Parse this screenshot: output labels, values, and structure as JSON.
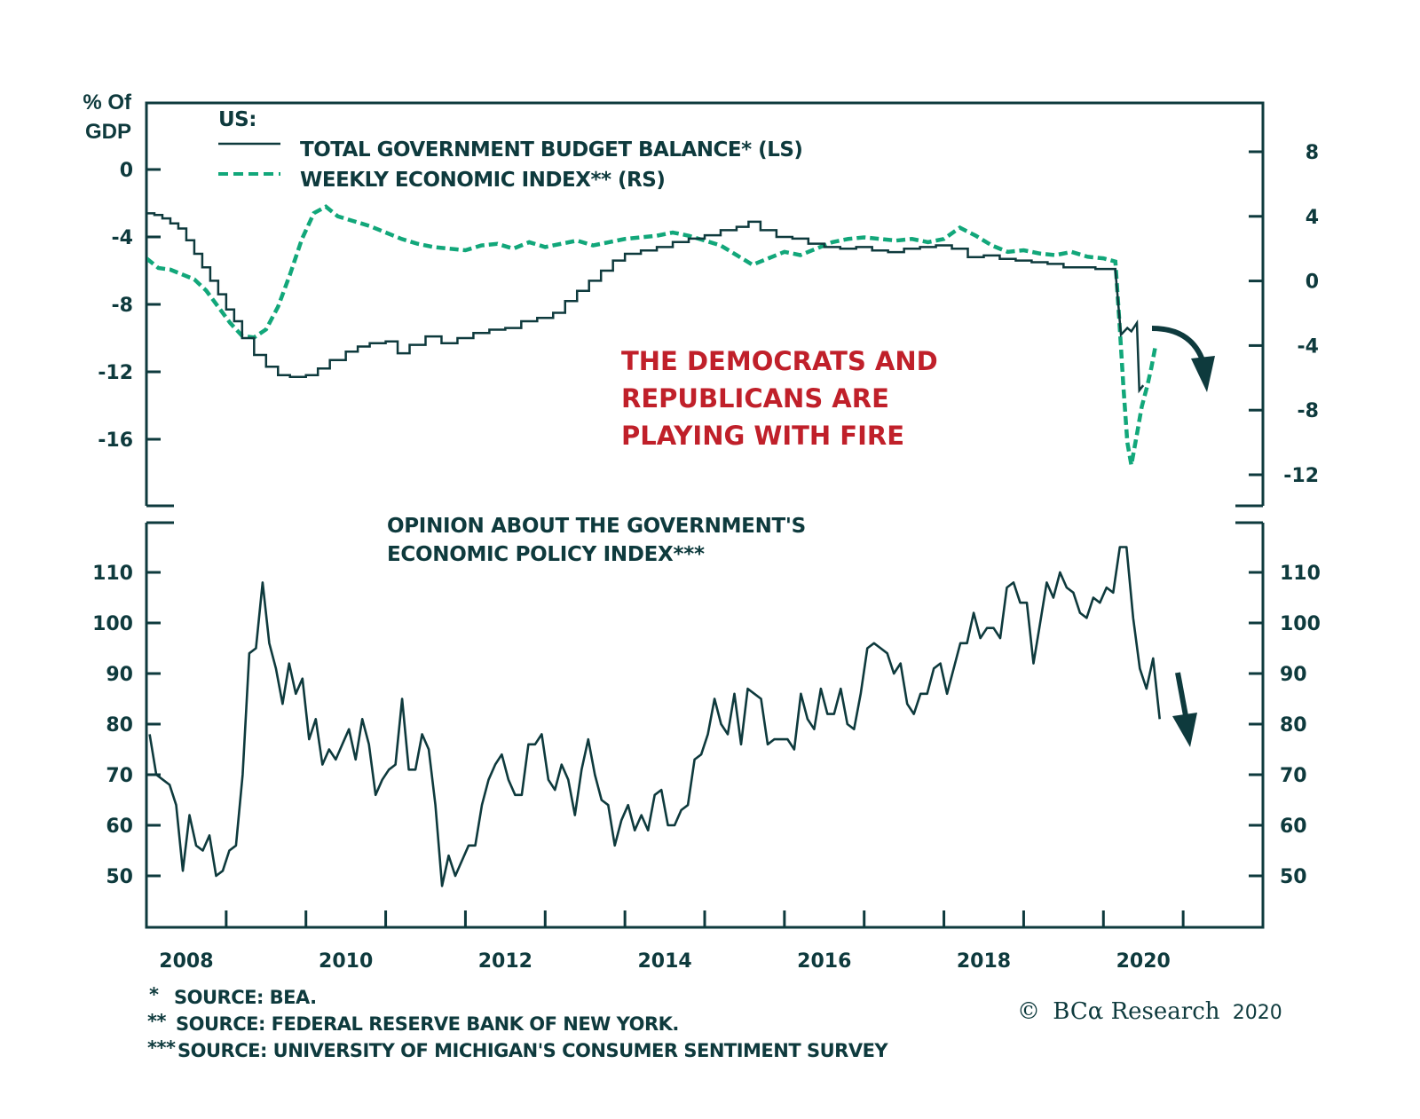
{
  "chart_data": [
    {
      "type": "line",
      "panel": "top",
      "title": "US:",
      "left_axis_title": [
        "% Of",
        "GDP"
      ],
      "left_ylim": [
        -20,
        4
      ],
      "left_ticks": [
        0,
        -4,
        -8,
        -12,
        -16
      ],
      "right_ylim": [
        -13.5,
        12
      ],
      "right_ticks": [
        8,
        4,
        0,
        -4,
        -8,
        -12
      ],
      "xlim": [
        2008.0,
        2022.0
      ],
      "x_ticks": [
        2009,
        2010,
        2011,
        2012,
        2013,
        2014,
        2015,
        2016,
        2017,
        2018,
        2019,
        2020,
        2021
      ],
      "x_labels": [
        {
          "year": 2008.5,
          "label": "2008"
        },
        {
          "year": 2010.5,
          "label": "2010"
        },
        {
          "year": 2012.5,
          "label": "2012"
        },
        {
          "year": 2014.5,
          "label": "2014"
        },
        {
          "year": 2016.5,
          "label": "2016"
        },
        {
          "year": 2018.5,
          "label": "2018"
        },
        {
          "year": 2020.5,
          "label": "2020"
        }
      ],
      "legend": [
        {
          "label": "TOTAL GOVERNMENT BUDGET BALANCE* (LS)",
          "style": "solid",
          "color": "#0e3a3d"
        },
        {
          "label": "WEEKLY ECONOMIC INDEX** (RS)",
          "style": "dashed",
          "color": "#12a77a"
        }
      ],
      "series": [
        {
          "name": "TOTAL GOVERNMENT BUDGET BALANCE* (LS)",
          "axis": "left",
          "style": "step",
          "color": "#0e3a3d",
          "points": [
            [
              2008.0,
              -2.6
            ],
            [
              2008.1,
              -2.7
            ],
            [
              2008.2,
              -2.9
            ],
            [
              2008.3,
              -3.2
            ],
            [
              2008.4,
              -3.5
            ],
            [
              2008.5,
              -4.2
            ],
            [
              2008.6,
              -5.0
            ],
            [
              2008.7,
              -5.8
            ],
            [
              2008.8,
              -6.6
            ],
            [
              2008.9,
              -7.4
            ],
            [
              2009.0,
              -8.3
            ],
            [
              2009.1,
              -9.0
            ],
            [
              2009.2,
              -10.0
            ],
            [
              2009.35,
              -11.0
            ],
            [
              2009.5,
              -11.7
            ],
            [
              2009.65,
              -12.2
            ],
            [
              2009.8,
              -12.3
            ],
            [
              2010.0,
              -12.2
            ],
            [
              2010.15,
              -11.8
            ],
            [
              2010.3,
              -11.3
            ],
            [
              2010.5,
              -10.8
            ],
            [
              2010.65,
              -10.5
            ],
            [
              2010.8,
              -10.3
            ],
            [
              2011.0,
              -10.2
            ],
            [
              2011.15,
              -10.9
            ],
            [
              2011.3,
              -10.4
            ],
            [
              2011.5,
              -9.9
            ],
            [
              2011.7,
              -10.3
            ],
            [
              2011.9,
              -10.0
            ],
            [
              2012.1,
              -9.7
            ],
            [
              2012.3,
              -9.5
            ],
            [
              2012.5,
              -9.4
            ],
            [
              2012.7,
              -9.0
            ],
            [
              2012.9,
              -8.8
            ],
            [
              2013.1,
              -8.5
            ],
            [
              2013.25,
              -7.8
            ],
            [
              2013.4,
              -7.2
            ],
            [
              2013.55,
              -6.6
            ],
            [
              2013.7,
              -6.0
            ],
            [
              2013.85,
              -5.4
            ],
            [
              2014.0,
              -5.0
            ],
            [
              2014.2,
              -4.8
            ],
            [
              2014.4,
              -4.6
            ],
            [
              2014.6,
              -4.3
            ],
            [
              2014.8,
              -4.1
            ],
            [
              2015.0,
              -3.9
            ],
            [
              2015.2,
              -3.6
            ],
            [
              2015.4,
              -3.4
            ],
            [
              2015.55,
              -3.1
            ],
            [
              2015.7,
              -3.6
            ],
            [
              2015.9,
              -4.0
            ],
            [
              2016.1,
              -4.1
            ],
            [
              2016.3,
              -4.4
            ],
            [
              2016.5,
              -4.6
            ],
            [
              2016.7,
              -4.7
            ],
            [
              2016.9,
              -4.6
            ],
            [
              2017.1,
              -4.8
            ],
            [
              2017.3,
              -4.9
            ],
            [
              2017.5,
              -4.7
            ],
            [
              2017.7,
              -4.6
            ],
            [
              2017.9,
              -4.5
            ],
            [
              2018.1,
              -4.7
            ],
            [
              2018.3,
              -5.2
            ],
            [
              2018.5,
              -5.1
            ],
            [
              2018.7,
              -5.3
            ],
            [
              2018.9,
              -5.4
            ],
            [
              2019.1,
              -5.5
            ],
            [
              2019.3,
              -5.6
            ],
            [
              2019.5,
              -5.8
            ],
            [
              2019.7,
              -5.8
            ],
            [
              2019.9,
              -5.9
            ],
            [
              2020.15,
              -6.0
            ],
            [
              2020.22,
              -9.8
            ],
            [
              2020.3,
              -9.4
            ],
            [
              2020.35,
              -9.6
            ],
            [
              2020.42,
              -9.1
            ],
            [
              2020.45,
              -13.1
            ],
            [
              2020.5,
              -12.8
            ]
          ]
        },
        {
          "name": "WEEKLY ECONOMIC INDEX** (RS)",
          "axis": "right",
          "style": "dashed",
          "color": "#12a77a",
          "points": [
            [
              2008.0,
              1.4
            ],
            [
              2008.15,
              0.8
            ],
            [
              2008.3,
              0.7
            ],
            [
              2008.45,
              0.4
            ],
            [
              2008.6,
              0.1
            ],
            [
              2008.75,
              -0.6
            ],
            [
              2008.9,
              -1.6
            ],
            [
              2009.05,
              -2.6
            ],
            [
              2009.2,
              -3.4
            ],
            [
              2009.35,
              -3.5
            ],
            [
              2009.5,
              -3.0
            ],
            [
              2009.65,
              -1.6
            ],
            [
              2009.8,
              0.4
            ],
            [
              2009.95,
              2.6
            ],
            [
              2010.1,
              4.2
            ],
            [
              2010.25,
              4.6
            ],
            [
              2010.4,
              4.0
            ],
            [
              2010.6,
              3.7
            ],
            [
              2010.8,
              3.4
            ],
            [
              2011.0,
              3.0
            ],
            [
              2011.2,
              2.6
            ],
            [
              2011.4,
              2.3
            ],
            [
              2011.6,
              2.1
            ],
            [
              2011.8,
              2.0
            ],
            [
              2012.0,
              1.9
            ],
            [
              2012.2,
              2.2
            ],
            [
              2012.4,
              2.3
            ],
            [
              2012.6,
              2.0
            ],
            [
              2012.8,
              2.4
            ],
            [
              2013.0,
              2.1
            ],
            [
              2013.2,
              2.3
            ],
            [
              2013.4,
              2.5
            ],
            [
              2013.6,
              2.2
            ],
            [
              2013.8,
              2.4
            ],
            [
              2014.0,
              2.6
            ],
            [
              2014.2,
              2.7
            ],
            [
              2014.4,
              2.8
            ],
            [
              2014.6,
              3.0
            ],
            [
              2014.8,
              2.8
            ],
            [
              2015.0,
              2.5
            ],
            [
              2015.2,
              2.2
            ],
            [
              2015.4,
              1.6
            ],
            [
              2015.6,
              1.0
            ],
            [
              2015.8,
              1.4
            ],
            [
              2016.0,
              1.8
            ],
            [
              2016.2,
              1.6
            ],
            [
              2016.4,
              2.0
            ],
            [
              2016.6,
              2.4
            ],
            [
              2016.8,
              2.6
            ],
            [
              2017.0,
              2.7
            ],
            [
              2017.2,
              2.6
            ],
            [
              2017.4,
              2.5
            ],
            [
              2017.6,
              2.6
            ],
            [
              2017.8,
              2.4
            ],
            [
              2018.0,
              2.6
            ],
            [
              2018.2,
              3.3
            ],
            [
              2018.4,
              2.8
            ],
            [
              2018.6,
              2.2
            ],
            [
              2018.8,
              1.8
            ],
            [
              2019.0,
              1.9
            ],
            [
              2019.2,
              1.7
            ],
            [
              2019.4,
              1.6
            ],
            [
              2019.6,
              1.8
            ],
            [
              2019.8,
              1.5
            ],
            [
              2020.0,
              1.4
            ],
            [
              2020.15,
              1.2
            ],
            [
              2020.2,
              -2.5
            ],
            [
              2020.25,
              -6.5
            ],
            [
              2020.3,
              -10.0
            ],
            [
              2020.35,
              -11.4
            ],
            [
              2020.42,
              -9.5
            ],
            [
              2020.48,
              -7.8
            ],
            [
              2020.55,
              -6.5
            ],
            [
              2020.6,
              -5.4
            ],
            [
              2020.65,
              -4.1
            ]
          ]
        }
      ],
      "annotation": [
        "THE DEMOCRATS AND",
        "REPUBLICANS ARE",
        "PLAYING WITH FIRE"
      ],
      "annotation_color": "#c0202a",
      "arrow": "curved-down"
    },
    {
      "type": "line",
      "panel": "bottom",
      "title": [
        "OPINION ABOUT THE GOVERNMENT'S",
        "ECONOMIC POLICY INDEX***"
      ],
      "ylim": [
        40.5,
        120
      ],
      "y_ticks": [
        110,
        100,
        90,
        80,
        70,
        60,
        50
      ],
      "xlim": [
        2008.0,
        2022.0
      ],
      "series": [
        {
          "name": "OPINION ABOUT THE GOVERNMENT'S ECONOMIC POLICY INDEX***",
          "color": "#0e3a3d",
          "start": 2008.0,
          "step": 0.08333,
          "values": [
            78,
            70,
            69,
            68,
            64,
            51,
            62,
            56,
            55,
            58,
            50,
            51,
            55,
            56,
            70,
            94,
            95,
            108,
            96,
            91,
            84,
            92,
            86,
            89,
            77,
            81,
            72,
            75,
            73,
            76,
            79,
            73,
            81,
            76,
            66,
            69,
            71,
            72,
            85,
            71,
            71,
            78,
            75,
            64,
            48,
            54,
            50,
            53,
            56,
            56,
            64,
            69,
            72,
            74,
            69,
            66,
            66,
            76,
            76,
            78,
            69,
            67,
            72,
            69,
            62,
            71,
            77,
            70,
            65,
            64,
            56,
            61,
            64,
            59,
            62,
            59,
            66,
            67,
            60,
            60,
            63,
            64,
            73,
            74,
            78,
            85,
            80,
            78,
            86,
            76,
            87,
            86,
            85,
            76,
            77,
            77,
            77,
            75,
            86,
            81,
            79,
            87,
            82,
            82,
            87,
            80,
            79,
            86,
            95,
            96,
            95,
            94,
            90,
            92,
            84,
            82,
            86,
            86,
            91,
            92,
            86,
            91,
            96,
            96,
            102,
            97,
            99,
            99,
            97,
            107,
            108,
            104,
            104,
            92,
            100,
            108,
            105,
            110,
            107,
            106,
            102,
            101,
            105,
            104,
            107,
            106,
            115,
            115,
            101,
            91,
            87,
            93,
            81
          ]
        }
      ],
      "arrow": "down"
    }
  ],
  "footnotes": [
    {
      "mark": "*",
      "text": "SOURCE: BEA."
    },
    {
      "mark": "**",
      "text": "SOURCE: FEDERAL RESERVE BANK OF NEW YORK."
    },
    {
      "mark": "***",
      "text": "SOURCE: UNIVERSITY OF MICHIGAN'S CONSUMER SENTIMENT SURVEY"
    }
  ],
  "credit": {
    "copyright": "©",
    "brand": "BCα Research",
    "year": "2020"
  },
  "colors": {
    "axis": "#0e3a3d",
    "budget": "#0e3a3d",
    "wei": "#12a77a",
    "annotation": "#c0202a"
  }
}
